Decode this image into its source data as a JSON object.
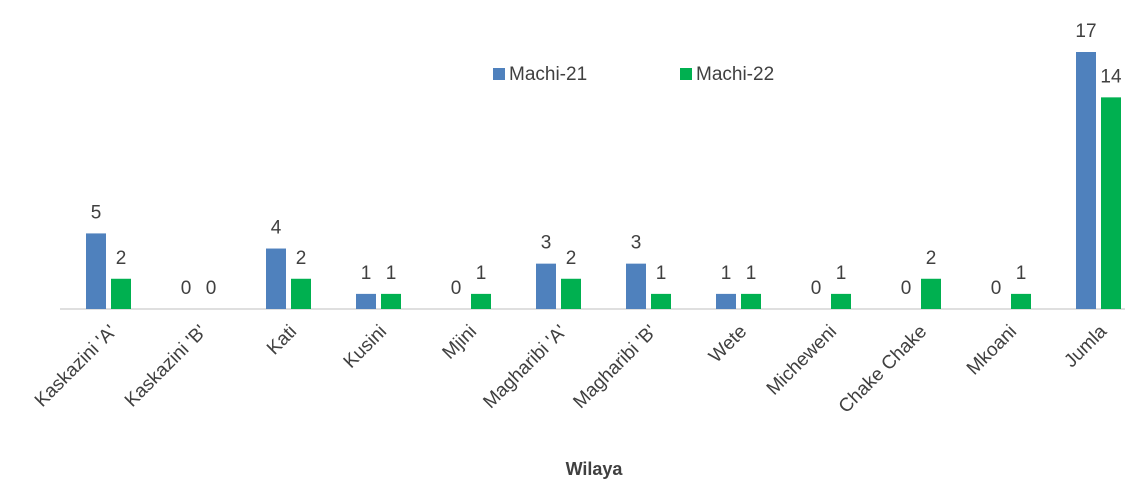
{
  "chart_data": {
    "type": "bar",
    "x_label": "Wilaya",
    "categories": [
      "Kaskazini 'A'",
      "Kaskazini 'B'",
      "Kati",
      "Kusini",
      "Mjini",
      "Magharibi 'A'",
      "Magharibi 'B'",
      "Wete",
      "Micheweni",
      "Chake Chake",
      "Mkoani",
      "Jumla"
    ],
    "series": [
      {
        "name": "Machi-21",
        "color": "#4f81bd",
        "values": [
          5,
          0,
          4,
          1,
          0,
          3,
          3,
          1,
          0,
          0,
          0,
          17
        ]
      },
      {
        "name": "Machi-22",
        "color": "#00b050",
        "values": [
          2,
          0,
          2,
          1,
          1,
          2,
          1,
          1,
          1,
          2,
          1,
          14
        ]
      }
    ],
    "legend": "top"
  }
}
